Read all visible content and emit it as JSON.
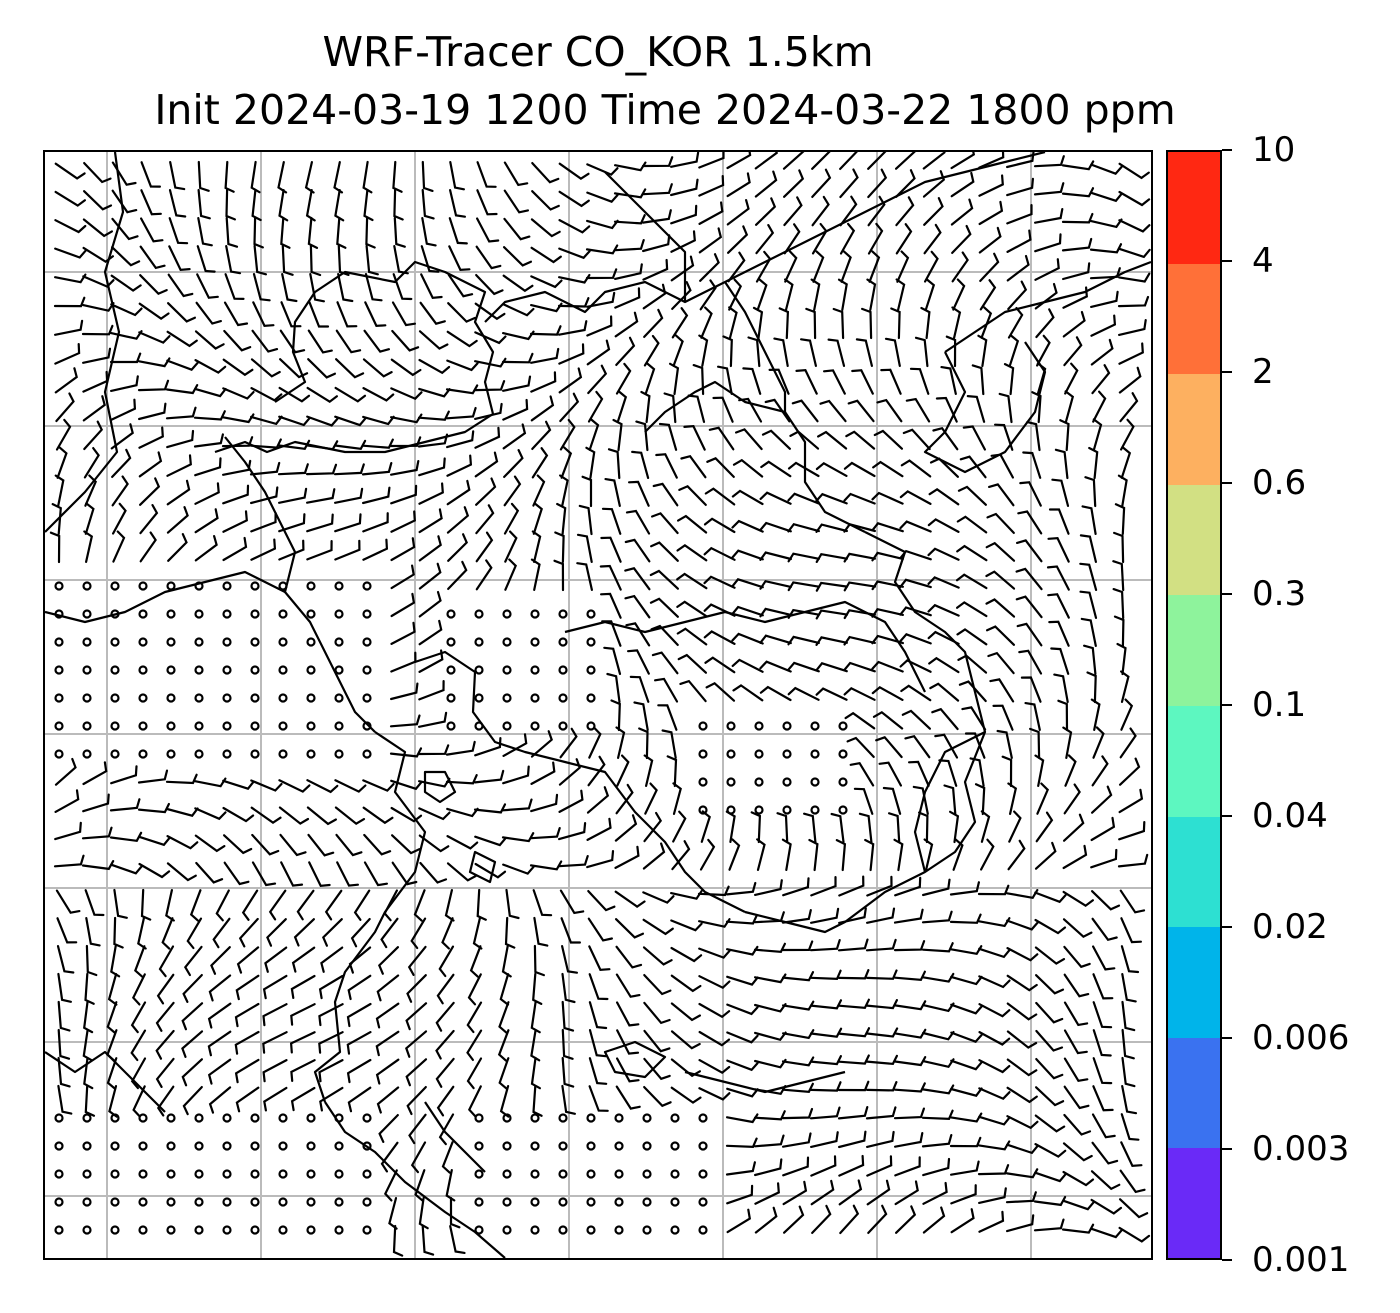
{
  "title": {
    "line1": "WRF-Tracer CO_KOR 1.5km",
    "line2": "Init 2024-03-19 1200 Time 2024-03-22 1800 ppm"
  },
  "map": {
    "grid_color": "#bbbbbb",
    "coast_color": "#000000",
    "barb_color": "#000000",
    "grid_lines": 7
  },
  "colorbar": {
    "ticks": [
      "10",
      "4",
      "2",
      "0.6",
      "0.3",
      "0.1",
      "0.04",
      "0.02",
      "0.006",
      "0.003",
      "0.001"
    ],
    "colors": [
      "#6a2af7",
      "#3a72f0",
      "#00b4ea",
      "#2de0d2",
      "#5df7c0",
      "#8ef39c",
      "#d2e083",
      "#fdb060",
      "#ff7038",
      "#ff2812"
    ]
  }
}
